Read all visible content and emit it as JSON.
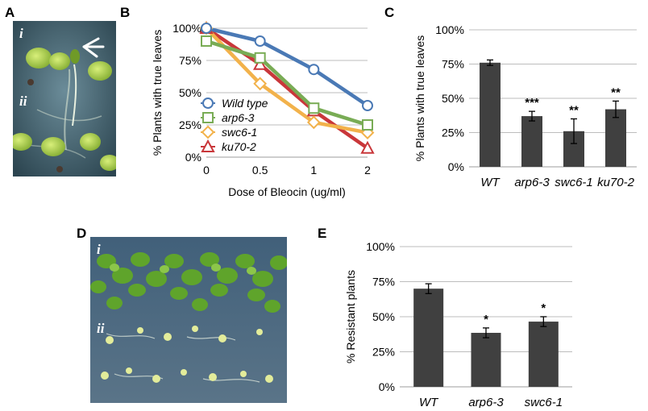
{
  "panels": {
    "A": {
      "letter": "A",
      "label_i": "i",
      "label_ii": "ii"
    },
    "B": {
      "letter": "B"
    },
    "C": {
      "letter": "C"
    },
    "D": {
      "letter": "D",
      "label_i": "i",
      "label_ii": "ii"
    },
    "E": {
      "letter": "E"
    }
  },
  "chart_data": [
    {
      "panel": "B",
      "type": "line",
      "categories": [
        "0",
        "0.5",
        "1",
        "2"
      ],
      "xlabel": "Dose of Bleocin (ug/ml)",
      "ylabel": "% Plants with true leaves",
      "ylim": [
        0,
        100
      ],
      "yticks": [
        "0%",
        "25%",
        "50%",
        "75%",
        "100%"
      ],
      "grid": true,
      "legend": "bottom-left",
      "series": [
        {
          "name": "Wild type",
          "values": [
            100,
            90,
            68,
            40
          ],
          "color": "#4a79b5",
          "marker": "circle"
        },
        {
          "name": "arp6-3",
          "values": [
            90,
            77,
            38,
            25
          ],
          "color": "#79ac55",
          "marker": "square"
        },
        {
          "name": "swc6-1",
          "values": [
            100,
            57,
            27,
            19
          ],
          "color": "#f2b24b",
          "marker": "diamond"
        },
        {
          "name": "ku70-2",
          "values": [
            100,
            72,
            36,
            7
          ],
          "color": "#c9373a",
          "marker": "triangle"
        }
      ]
    },
    {
      "panel": "C",
      "type": "bar",
      "categories": [
        "WT",
        "arp6-3",
        "swc6-1",
        "ku70-2"
      ],
      "values": [
        76,
        37,
        26,
        42
      ],
      "errors": [
        2,
        3.5,
        9,
        6
      ],
      "significance": [
        "",
        "***",
        "**",
        "**"
      ],
      "ylabel": "% Plants with true leaves",
      "ylim": [
        0,
        100
      ],
      "yticks": [
        "0%",
        "25%",
        "50%",
        "75%",
        "100%"
      ],
      "grid": true,
      "bar_color": "#404040"
    },
    {
      "panel": "E",
      "type": "bar",
      "categories": [
        "WT",
        "arp6-3",
        "swc6-1"
      ],
      "values": [
        70,
        38.5,
        46.5
      ],
      "errors": [
        3.5,
        3.5,
        3.5
      ],
      "significance": [
        "",
        "*",
        "*"
      ],
      "ylabel": "% Resistant plants",
      "ylim": [
        0,
        100
      ],
      "yticks": [
        "0%",
        "25%",
        "50%",
        "75%",
        "100%"
      ],
      "grid": true,
      "bar_color": "#404040"
    }
  ]
}
